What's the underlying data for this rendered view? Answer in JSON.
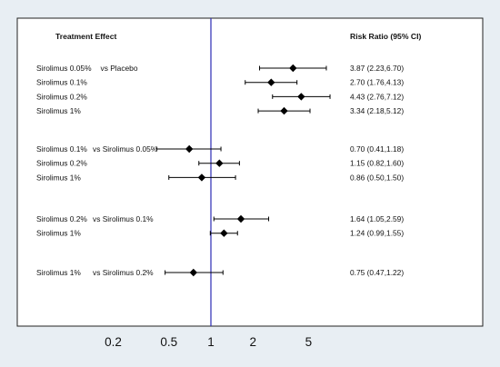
{
  "colors": {
    "outer_background": "#e8eef3",
    "plot_background": "#ffffff",
    "frame": "#222222",
    "reference_line": "#2b2bb5",
    "marker": "#000000",
    "ci_line": "#000000",
    "text": "#111111"
  },
  "chart_data": {
    "type": "forest",
    "scale": "log",
    "title": "",
    "xlabel": "",
    "reference_line": 1,
    "grid": false,
    "xlim": [
      0.12,
      11
    ],
    "xticks": [
      0.2,
      0.5,
      1,
      2,
      5
    ],
    "xtick_labels": [
      "0.2",
      "0.5",
      "1",
      "2",
      "5"
    ],
    "header_left": "Treatment Effect",
    "header_right": "Risk Ratio (95% CI)",
    "groups": [
      {
        "rows": [
          {
            "label": "Sirolimus 0.05%",
            "comparator": "vs Placebo",
            "rr": 3.87,
            "lo": 2.23,
            "hi": 6.7,
            "text": "3.87 (2.23,6.70)"
          },
          {
            "label": "Sirolimus 0.1%",
            "comparator": "",
            "rr": 2.7,
            "lo": 1.76,
            "hi": 4.13,
            "text": "2.70 (1.76,4.13)"
          },
          {
            "label": "Sirolimus 0.2%",
            "comparator": "",
            "rr": 4.43,
            "lo": 2.76,
            "hi": 7.12,
            "text": "4.43 (2.76,7.12)"
          },
          {
            "label": "Sirolimus 1%",
            "comparator": "",
            "rr": 3.34,
            "lo": 2.18,
            "hi": 5.12,
            "text": "3.34 (2.18,5.12)"
          }
        ]
      },
      {
        "rows": [
          {
            "label": "Sirolimus 0.1%",
            "comparator": "vs Sirolimus 0.05%",
            "rr": 0.7,
            "lo": 0.41,
            "hi": 1.18,
            "text": "0.70 (0.41,1.18)"
          },
          {
            "label": "Sirolimus 0.2%",
            "comparator": "",
            "rr": 1.15,
            "lo": 0.82,
            "hi": 1.6,
            "text": "1.15 (0.82,1.60)"
          },
          {
            "label": "Sirolimus 1%",
            "comparator": "",
            "rr": 0.86,
            "lo": 0.5,
            "hi": 1.5,
            "text": "0.86 (0.50,1.50)"
          }
        ]
      },
      {
        "rows": [
          {
            "label": "Sirolimus 0.2%",
            "comparator": "vs Sirolimus 0.1%",
            "rr": 1.64,
            "lo": 1.05,
            "hi": 2.59,
            "text": "1.64 (1.05,2.59)"
          },
          {
            "label": "Sirolimus 1%",
            "comparator": "",
            "rr": 1.24,
            "lo": 0.99,
            "hi": 1.55,
            "text": "1.24 (0.99,1.55)"
          }
        ]
      },
      {
        "rows": [
          {
            "label": "Sirolimus 1%",
            "comparator": "vs Sirolimus 0.2%",
            "rr": 0.75,
            "lo": 0.47,
            "hi": 1.22,
            "text": "0.75 (0.47,1.22)"
          }
        ]
      }
    ]
  }
}
